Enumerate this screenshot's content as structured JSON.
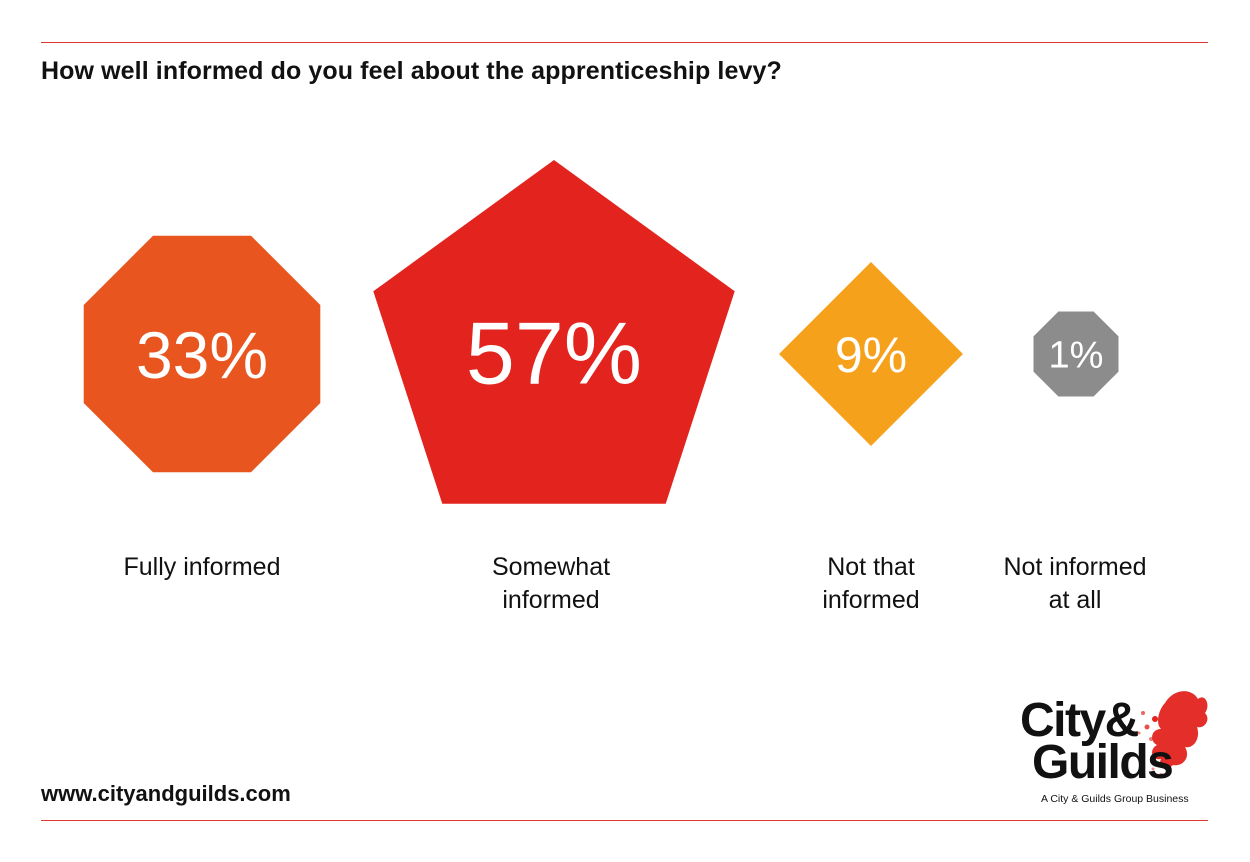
{
  "title": "How well informed do you feel about the apprenticeship levy?",
  "footer": {
    "url": "www.cityandguilds.com",
    "logo_line1": "City&",
    "logo_line2": "Guilds",
    "logo_tagline": "A City & Guilds Group Business"
  },
  "colors": {
    "rule": "#e0372f",
    "fully": "#e8551f",
    "somewhat": "#e2231e",
    "not_that": "#f5a11b",
    "not_at_all": "#8c8c8c"
  },
  "chart_data": {
    "type": "pictorial",
    "title": "How well informed do you feel about the apprenticeship levy?",
    "unit": "%",
    "categories": [
      "Fully informed",
      "Somewhat informed",
      "Not that informed",
      "Not informed at all"
    ],
    "values": [
      33,
      57,
      9,
      1
    ],
    "value_labels": [
      "33%",
      "57%",
      "9%",
      "1%"
    ],
    "shapes": [
      "octagon",
      "pentagon",
      "diamond",
      "octagon"
    ],
    "colors": [
      "#e8551f",
      "#e2231e",
      "#f5a11b",
      "#8c8c8c"
    ],
    "label_lines": [
      [
        "Fully informed"
      ],
      [
        "Somewhat",
        "informed"
      ],
      [
        "Not that",
        "informed"
      ],
      [
        "Not informed",
        "at all"
      ]
    ]
  }
}
